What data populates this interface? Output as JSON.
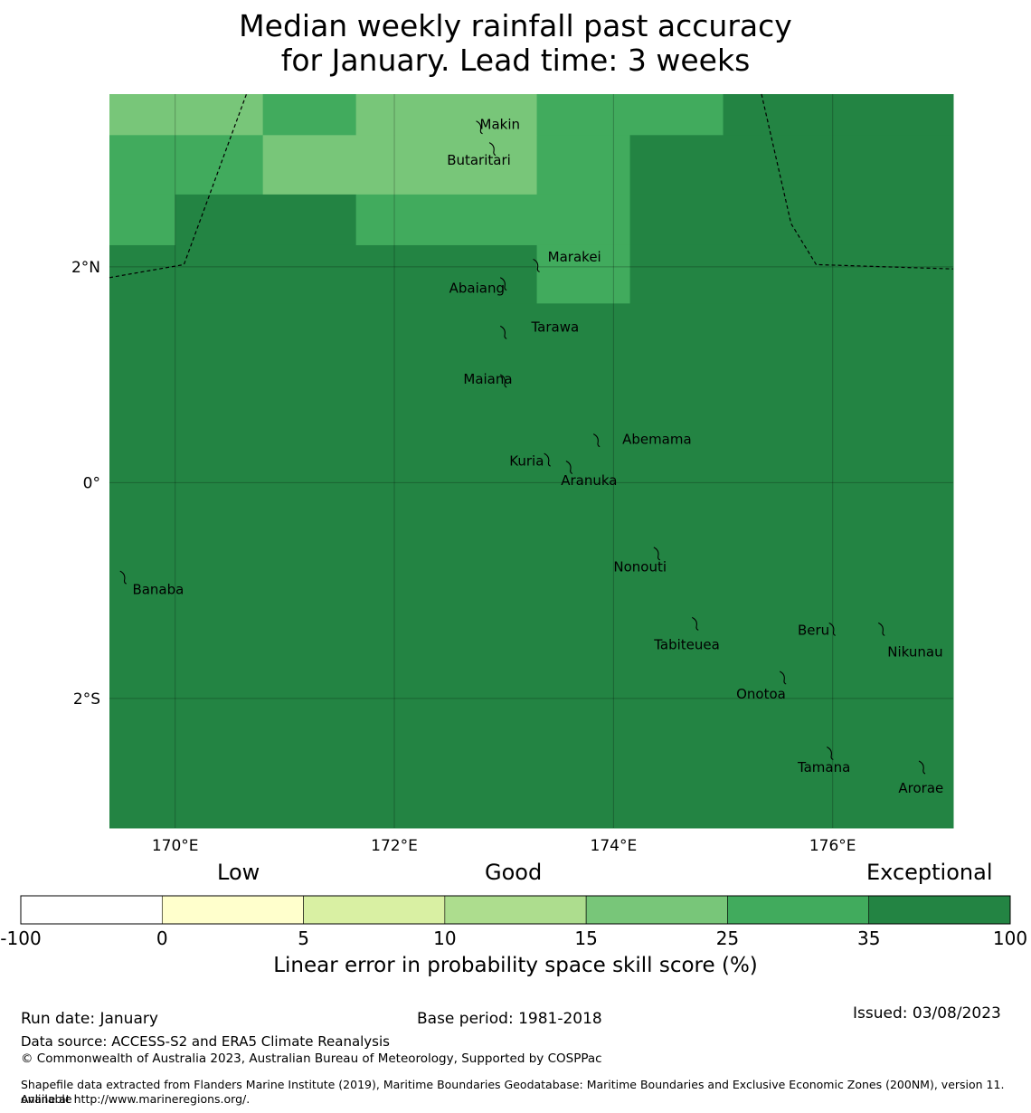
{
  "title": {
    "line1": "Median weekly rainfall past accuracy",
    "line2": "for January. Lead time: 3 weeks"
  },
  "map": {
    "lon_range": [
      169.4,
      177.1
    ],
    "lat_range": [
      -3.2,
      3.6
    ],
    "lon_ticks": [
      {
        "value": 170,
        "label": "170°E"
      },
      {
        "value": 172,
        "label": "172°E"
      },
      {
        "value": 174,
        "label": "174°E"
      },
      {
        "value": 176,
        "label": "176°E"
      }
    ],
    "lat_ticks": [
      {
        "value": 2,
        "label": "2°N"
      },
      {
        "value": 0,
        "label": "0°"
      },
      {
        "value": -2,
        "label": "2°S"
      }
    ],
    "skill_grid_note": "category index per cell: 5 = 25 to 35, 6 = 35 to 100",
    "skill_cells": [
      {
        "lon": [
          169.4,
          170.0
        ],
        "lat": [
          3.22,
          3.6
        ],
        "category": 4
      },
      {
        "lon": [
          170.0,
          170.8
        ],
        "lat": [
          3.22,
          3.6
        ],
        "category": 4
      },
      {
        "lon": [
          170.8,
          171.65
        ],
        "lat": [
          3.22,
          3.6
        ],
        "category": 5
      },
      {
        "lon": [
          171.65,
          173.3
        ],
        "lat": [
          3.22,
          3.6
        ],
        "category": 4
      },
      {
        "lon": [
          173.3,
          175.0
        ],
        "lat": [
          3.22,
          3.6
        ],
        "category": 5
      },
      {
        "lon": [
          175.0,
          177.1
        ],
        "lat": [
          3.22,
          3.6
        ],
        "category": 6
      },
      {
        "lon": [
          169.4,
          170.8
        ],
        "lat": [
          2.67,
          3.22
        ],
        "category": 5
      },
      {
        "lon": [
          170.8,
          173.3
        ],
        "lat": [
          2.67,
          3.22
        ],
        "category": 4
      },
      {
        "lon": [
          173.3,
          174.15
        ],
        "lat": [
          2.67,
          3.22
        ],
        "category": 5
      },
      {
        "lon": [
          174.15,
          177.1
        ],
        "lat": [
          2.67,
          3.22
        ],
        "category": 6
      },
      {
        "lon": [
          169.4,
          170.0
        ],
        "lat": [
          2.2,
          2.67
        ],
        "category": 5
      },
      {
        "lon": [
          170.0,
          171.65
        ],
        "lat": [
          2.2,
          2.67
        ],
        "category": 6
      },
      {
        "lon": [
          171.65,
          174.15
        ],
        "lat": [
          2.2,
          2.67
        ],
        "category": 5
      },
      {
        "lon": [
          174.15,
          177.1
        ],
        "lat": [
          2.2,
          2.67
        ],
        "category": 6
      },
      {
        "lon": [
          169.4,
          173.3
        ],
        "lat": [
          1.66,
          2.2
        ],
        "category": 6
      },
      {
        "lon": [
          173.3,
          174.15
        ],
        "lat": [
          1.66,
          2.2
        ],
        "category": 5
      },
      {
        "lon": [
          174.15,
          177.1
        ],
        "lat": [
          1.66,
          2.2
        ],
        "category": 6
      },
      {
        "lon": [
          169.4,
          177.1
        ],
        "lat": [
          -3.2,
          1.66
        ],
        "category": 6
      }
    ],
    "boundaries": [
      [
        [
          169.4,
          1.9
        ],
        [
          170.08,
          2.02
        ],
        [
          170.65,
          3.6
        ]
      ],
      [
        [
          175.35,
          3.6
        ],
        [
          175.62,
          2.4
        ],
        [
          175.85,
          2.02
        ],
        [
          177.1,
          1.98
        ]
      ]
    ],
    "places": [
      {
        "name": "Makin",
        "lon": 172.78,
        "lat": 3.3,
        "label_lon": 172.78,
        "label_lat": 3.32
      },
      {
        "name": "Butaritari",
        "lon": 172.9,
        "lat": 3.1,
        "label_lon": 172.48,
        "label_lat": 2.99
      },
      {
        "name": "Marakei",
        "lon": 173.3,
        "lat": 2.02,
        "label_lon": 173.4,
        "label_lat": 2.09
      },
      {
        "name": "Abaiang",
        "lon": 173.0,
        "lat": 1.85,
        "label_lon": 172.5,
        "label_lat": 1.8
      },
      {
        "name": "Tarawa",
        "lon": 173.0,
        "lat": 1.4,
        "label_lon": 173.25,
        "label_lat": 1.44
      },
      {
        "name": "Maiana",
        "lon": 173.0,
        "lat": 0.95,
        "label_lon": 172.63,
        "label_lat": 0.96
      },
      {
        "name": "Abemama",
        "lon": 173.85,
        "lat": 0.4,
        "label_lon": 174.08,
        "label_lat": 0.4
      },
      {
        "name": "Kuria",
        "lon": 173.4,
        "lat": 0.22,
        "label_lon": 173.05,
        "label_lat": 0.2
      },
      {
        "name": "Aranuka",
        "lon": 173.6,
        "lat": 0.15,
        "label_lon": 173.52,
        "label_lat": 0.02
      },
      {
        "name": "Nonouti",
        "lon": 174.4,
        "lat": -0.65,
        "label_lon": 174.0,
        "label_lat": -0.78
      },
      {
        "name": "Banaba",
        "lon": 169.53,
        "lat": -0.87,
        "label_lon": 169.61,
        "label_lat": -0.99
      },
      {
        "name": "Tabiteuea",
        "lon": 174.75,
        "lat": -1.3,
        "label_lon": 174.37,
        "label_lat": -1.5
      },
      {
        "name": "Beru",
        "lon": 176.0,
        "lat": -1.35,
        "label_lon": 175.68,
        "label_lat": -1.37
      },
      {
        "name": "Nikunau",
        "lon": 176.45,
        "lat": -1.35,
        "label_lon": 176.5,
        "label_lat": -1.57
      },
      {
        "name": "Onotoa",
        "lon": 175.55,
        "lat": -1.8,
        "label_lon": 175.12,
        "label_lat": -1.96
      },
      {
        "name": "Tamana",
        "lon": 175.98,
        "lat": -2.5,
        "label_lon": 175.68,
        "label_lat": -2.64
      },
      {
        "name": "Arorae",
        "lon": 176.82,
        "lat": -2.63,
        "label_lon": 176.6,
        "label_lat": -2.83
      }
    ]
  },
  "colorbar": {
    "category_labels": {
      "low": "Low",
      "good": "Good",
      "exceptional": "Exceptional"
    },
    "bins": [
      {
        "from": "-100",
        "to": "0",
        "color": "#ffffff"
      },
      {
        "from": "0",
        "to": "5",
        "color": "#ffffcc"
      },
      {
        "from": "5",
        "to": "10",
        "color": "#d9f0a3"
      },
      {
        "from": "10",
        "to": "15",
        "color": "#addd8e"
      },
      {
        "from": "15",
        "to": "25",
        "color": "#78c679"
      },
      {
        "from": "25",
        "to": "35",
        "color": "#41ab5d"
      },
      {
        "from": "35",
        "to": "100",
        "color": "#238443"
      }
    ],
    "tick_labels": [
      "-100",
      "0",
      "5",
      "10",
      "15",
      "25",
      "35",
      "100"
    ],
    "title": "Linear error in probability space skill score (%)"
  },
  "footer": {
    "run_date": "Run date: January",
    "base_period": "Base period: 1981-2018",
    "issued": "Issued: 03/08/2023",
    "data_source": "Data source: ACCESS-S2 and ERA5 Climate Reanalysis",
    "copyright": "© Commonwealth of Australia 2023, Australian Bureau of Meteorology, Supported by COSPPac",
    "shapefile_line1": "Shapefile data extracted from Flanders Marine Institute (2019), Maritime Boundaries Geodatabase: Maritime Boundaries and Exclusive Economic Zones (200NM), version 11. Available",
    "shapefile_line2": "online at http://www.marineregions.org/."
  }
}
